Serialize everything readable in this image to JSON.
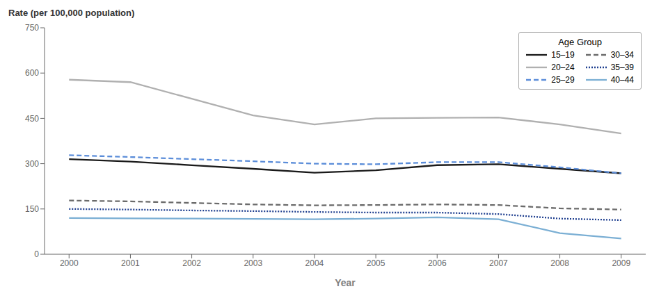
{
  "chart_data": {
    "type": "line",
    "xlabel": "Year",
    "ylabel": "Rate (per 100,000 population)",
    "legend_title": "Age Group",
    "x": [
      2000,
      2001,
      2002,
      2003,
      2004,
      2005,
      2006,
      2007,
      2008,
      2009
    ],
    "series": [
      {
        "name": "15–19",
        "color": "#1a1a1a",
        "line_style": "solid",
        "values": [
          315,
          307,
          295,
          283,
          270,
          278,
          295,
          298,
          283,
          268
        ]
      },
      {
        "name": "20–24",
        "color": "#b0b0b0",
        "line_style": "solid",
        "values": [
          578,
          570,
          515,
          460,
          430,
          450,
          452,
          453,
          430,
          400
        ]
      },
      {
        "name": "25–29",
        "color": "#5b8dd9",
        "line_style": "dashed",
        "values": [
          328,
          322,
          315,
          308,
          300,
          298,
          305,
          305,
          288,
          268
        ]
      },
      {
        "name": "30–34",
        "color": "#6b6b6b",
        "line_style": "dashed",
        "values": [
          178,
          175,
          170,
          165,
          162,
          163,
          165,
          163,
          152,
          148
        ]
      },
      {
        "name": "35–39",
        "color": "#1f3f8f",
        "line_style": "dotted",
        "values": [
          150,
          148,
          145,
          143,
          140,
          138,
          138,
          133,
          118,
          113
        ]
      },
      {
        "name": "40–44",
        "color": "#7bafd4",
        "line_style": "solid",
        "values": [
          120,
          119,
          118,
          117,
          116,
          118,
          122,
          116,
          70,
          52
        ]
      }
    ],
    "xlim": [
      1999.6,
      2009.4
    ],
    "xticks": [
      2000,
      2001,
      2002,
      2003,
      2004,
      2005,
      2006,
      2007,
      2008,
      2009
    ],
    "ylim": [
      0,
      750
    ],
    "yticks": [
      0,
      150,
      300,
      450,
      600,
      750
    ],
    "grid": false,
    "legend": "upper right"
  }
}
